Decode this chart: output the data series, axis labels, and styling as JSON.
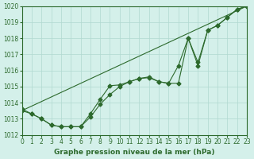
{
  "title": "Graphe pression niveau de la mer (hPa)",
  "background_color": "#d4f0ea",
  "grid_color": "#b0d8d0",
  "line_color": "#2d6a2d",
  "xlim": [
    0,
    23
  ],
  "ylim": [
    1012,
    1020
  ],
  "xticks": [
    0,
    1,
    2,
    3,
    4,
    5,
    6,
    7,
    8,
    9,
    10,
    11,
    12,
    13,
    14,
    15,
    16,
    17,
    18,
    19,
    20,
    21,
    22,
    23
  ],
  "yticks": [
    1012,
    1013,
    1014,
    1015,
    1016,
    1017,
    1018,
    1019,
    1020
  ],
  "straight_line": {
    "x": [
      0,
      23
    ],
    "y": [
      1013.5,
      1020.0
    ]
  },
  "series2_y": [
    1013.5,
    1013.3,
    1013.0,
    1012.6,
    1012.5,
    1012.5,
    1012.5,
    1013.1,
    1013.9,
    1014.5,
    1015.0,
    1015.3,
    1015.5,
    1015.55,
    1015.3,
    1015.2,
    1015.2,
    1018.0,
    1016.3,
    1018.5,
    1018.8,
    1019.3,
    1019.8,
    1020.0
  ],
  "series3_y": [
    1013.6,
    1013.3,
    1013.0,
    1012.6,
    1012.5,
    1012.5,
    1012.5,
    1013.3,
    1014.2,
    1015.05,
    1015.1,
    1015.3,
    1015.5,
    1015.6,
    1015.3,
    1015.2,
    1016.3,
    1018.0,
    1016.5,
    1018.5,
    1018.8,
    1019.3,
    1019.8,
    1020.0
  ],
  "x_common": [
    0,
    1,
    2,
    3,
    4,
    5,
    6,
    7,
    8,
    9,
    10,
    11,
    12,
    13,
    14,
    15,
    16,
    17,
    18,
    19,
    20,
    21,
    22,
    23
  ],
  "line_width": 0.8,
  "marker": "D",
  "markersize": 2.5,
  "tick_labelsize": 5.5,
  "xlabel_fontsize": 6.5
}
